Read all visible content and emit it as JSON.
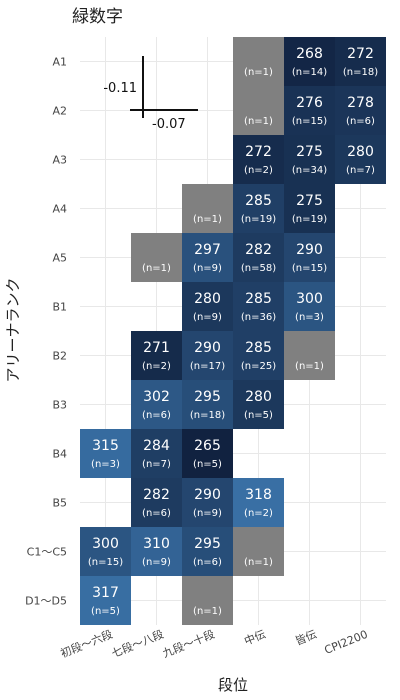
{
  "chart_data": {
    "type": "heatmap",
    "title": "緑数字",
    "xlabel": "段位",
    "ylabel": "アリーナランク",
    "x_categories": [
      "初段～六段",
      "七段～八段",
      "九段～十段",
      "中伝",
      "皆伝",
      "CPI2200"
    ],
    "y_categories": [
      "A1",
      "A2",
      "A3",
      "A4",
      "A5",
      "B1",
      "B2",
      "B3",
      "B4",
      "B5",
      "C1～C5",
      "D1～D5"
    ],
    "cells": [
      {
        "x": "中伝",
        "y": "A1",
        "value": null,
        "n": 1
      },
      {
        "x": "皆伝",
        "y": "A1",
        "value": 268,
        "n": 14
      },
      {
        "x": "CPI2200",
        "y": "A1",
        "value": 272,
        "n": 18
      },
      {
        "x": "中伝",
        "y": "A2",
        "value": null,
        "n": 1
      },
      {
        "x": "皆伝",
        "y": "A2",
        "value": 276,
        "n": 15
      },
      {
        "x": "CPI2200",
        "y": "A2",
        "value": 278,
        "n": 6
      },
      {
        "x": "中伝",
        "y": "A3",
        "value": 272,
        "n": 2
      },
      {
        "x": "皆伝",
        "y": "A3",
        "value": 275,
        "n": 34
      },
      {
        "x": "CPI2200",
        "y": "A3",
        "value": 280,
        "n": 7
      },
      {
        "x": "九段～十段",
        "y": "A4",
        "value": null,
        "n": 1
      },
      {
        "x": "中伝",
        "y": "A4",
        "value": 285,
        "n": 19
      },
      {
        "x": "皆伝",
        "y": "A4",
        "value": 275,
        "n": 19
      },
      {
        "x": "七段～八段",
        "y": "A5",
        "value": null,
        "n": 1
      },
      {
        "x": "九段～十段",
        "y": "A5",
        "value": 297,
        "n": 9
      },
      {
        "x": "中伝",
        "y": "A5",
        "value": 282,
        "n": 58
      },
      {
        "x": "皆伝",
        "y": "A5",
        "value": 290,
        "n": 15
      },
      {
        "x": "九段～十段",
        "y": "B1",
        "value": 280,
        "n": 9
      },
      {
        "x": "中伝",
        "y": "B1",
        "value": 285,
        "n": 36
      },
      {
        "x": "皆伝",
        "y": "B1",
        "value": 300,
        "n": 3
      },
      {
        "x": "七段～八段",
        "y": "B2",
        "value": 271,
        "n": 2
      },
      {
        "x": "九段～十段",
        "y": "B2",
        "value": 290,
        "n": 17
      },
      {
        "x": "中伝",
        "y": "B2",
        "value": 285,
        "n": 25
      },
      {
        "x": "皆伝",
        "y": "B2",
        "value": null,
        "n": 1
      },
      {
        "x": "七段～八段",
        "y": "B3",
        "value": 302,
        "n": 6
      },
      {
        "x": "九段～十段",
        "y": "B3",
        "value": 295,
        "n": 18
      },
      {
        "x": "中伝",
        "y": "B3",
        "value": 280,
        "n": 5
      },
      {
        "x": "初段～六段",
        "y": "B4",
        "value": 315,
        "n": 3
      },
      {
        "x": "七段～八段",
        "y": "B4",
        "value": 284,
        "n": 7
      },
      {
        "x": "九段～十段",
        "y": "B4",
        "value": 265,
        "n": 5
      },
      {
        "x": "七段～八段",
        "y": "B5",
        "value": 282,
        "n": 6
      },
      {
        "x": "九段～十段",
        "y": "B5",
        "value": 290,
        "n": 9
      },
      {
        "x": "中伝",
        "y": "B5",
        "value": 318,
        "n": 2
      },
      {
        "x": "初段～六段",
        "y": "C1～C5",
        "value": 300,
        "n": 15
      },
      {
        "x": "七段～八段",
        "y": "C1～C5",
        "value": 310,
        "n": 9
      },
      {
        "x": "九段～十段",
        "y": "C1～C5",
        "value": 295,
        "n": 6
      },
      {
        "x": "中伝",
        "y": "C1～C5",
        "value": null,
        "n": 1
      },
      {
        "x": "初段～六段",
        "y": "D1～D5",
        "value": 317,
        "n": 5
      },
      {
        "x": "九段～十段",
        "y": "D1～D5",
        "value": null,
        "n": 1
      }
    ],
    "color_scale": {
      "low": "#112240",
      "high": "#3a72a8",
      "missing": "#808080",
      "domain": [
        265,
        320
      ]
    },
    "grid": true,
    "legend": "none",
    "inset": {
      "vertical_label": "-0.11",
      "horizontal_label": "-0.07"
    }
  }
}
